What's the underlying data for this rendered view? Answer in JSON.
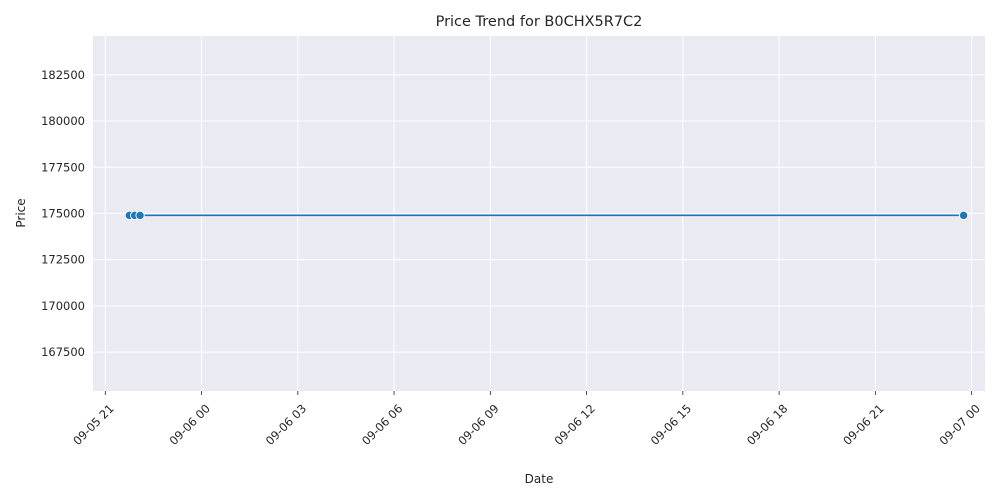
{
  "chart_data": {
    "type": "line",
    "title": "Price Trend for B0CHX5R7C2",
    "xlabel": "Date",
    "ylabel": "Price",
    "x_range": [
      "2024-09-05 20:37",
      "2024-09-07 00:25"
    ],
    "ylim": [
      165400,
      184600
    ],
    "x_ticks": [
      {
        "t": "2024-09-05 21:00",
        "label": "09-05 21"
      },
      {
        "t": "2024-09-06 00:00",
        "label": "09-06 00"
      },
      {
        "t": "2024-09-06 03:00",
        "label": "09-06 03"
      },
      {
        "t": "2024-09-06 06:00",
        "label": "09-06 06"
      },
      {
        "t": "2024-09-06 09:00",
        "label": "09-06 09"
      },
      {
        "t": "2024-09-06 12:00",
        "label": "09-06 12"
      },
      {
        "t": "2024-09-06 15:00",
        "label": "09-06 15"
      },
      {
        "t": "2024-09-06 18:00",
        "label": "09-06 18"
      },
      {
        "t": "2024-09-06 21:00",
        "label": "09-06 21"
      },
      {
        "t": "2024-09-07 00:00",
        "label": "09-07 00"
      }
    ],
    "y_ticks": [
      167500,
      170000,
      172500,
      175000,
      177500,
      180000,
      182500
    ],
    "series": [
      {
        "name": "",
        "color": "#1f77b4",
        "points": [
          {
            "x": "2024-09-05 21:45",
            "y": 174900
          },
          {
            "x": "2024-09-05 21:55",
            "y": 174900
          },
          {
            "x": "2024-09-05 22:05",
            "y": 174900
          },
          {
            "x": "2024-09-06 23:45",
            "y": 174900
          }
        ]
      }
    ],
    "grid": true,
    "background": "#eaeaf2"
  }
}
